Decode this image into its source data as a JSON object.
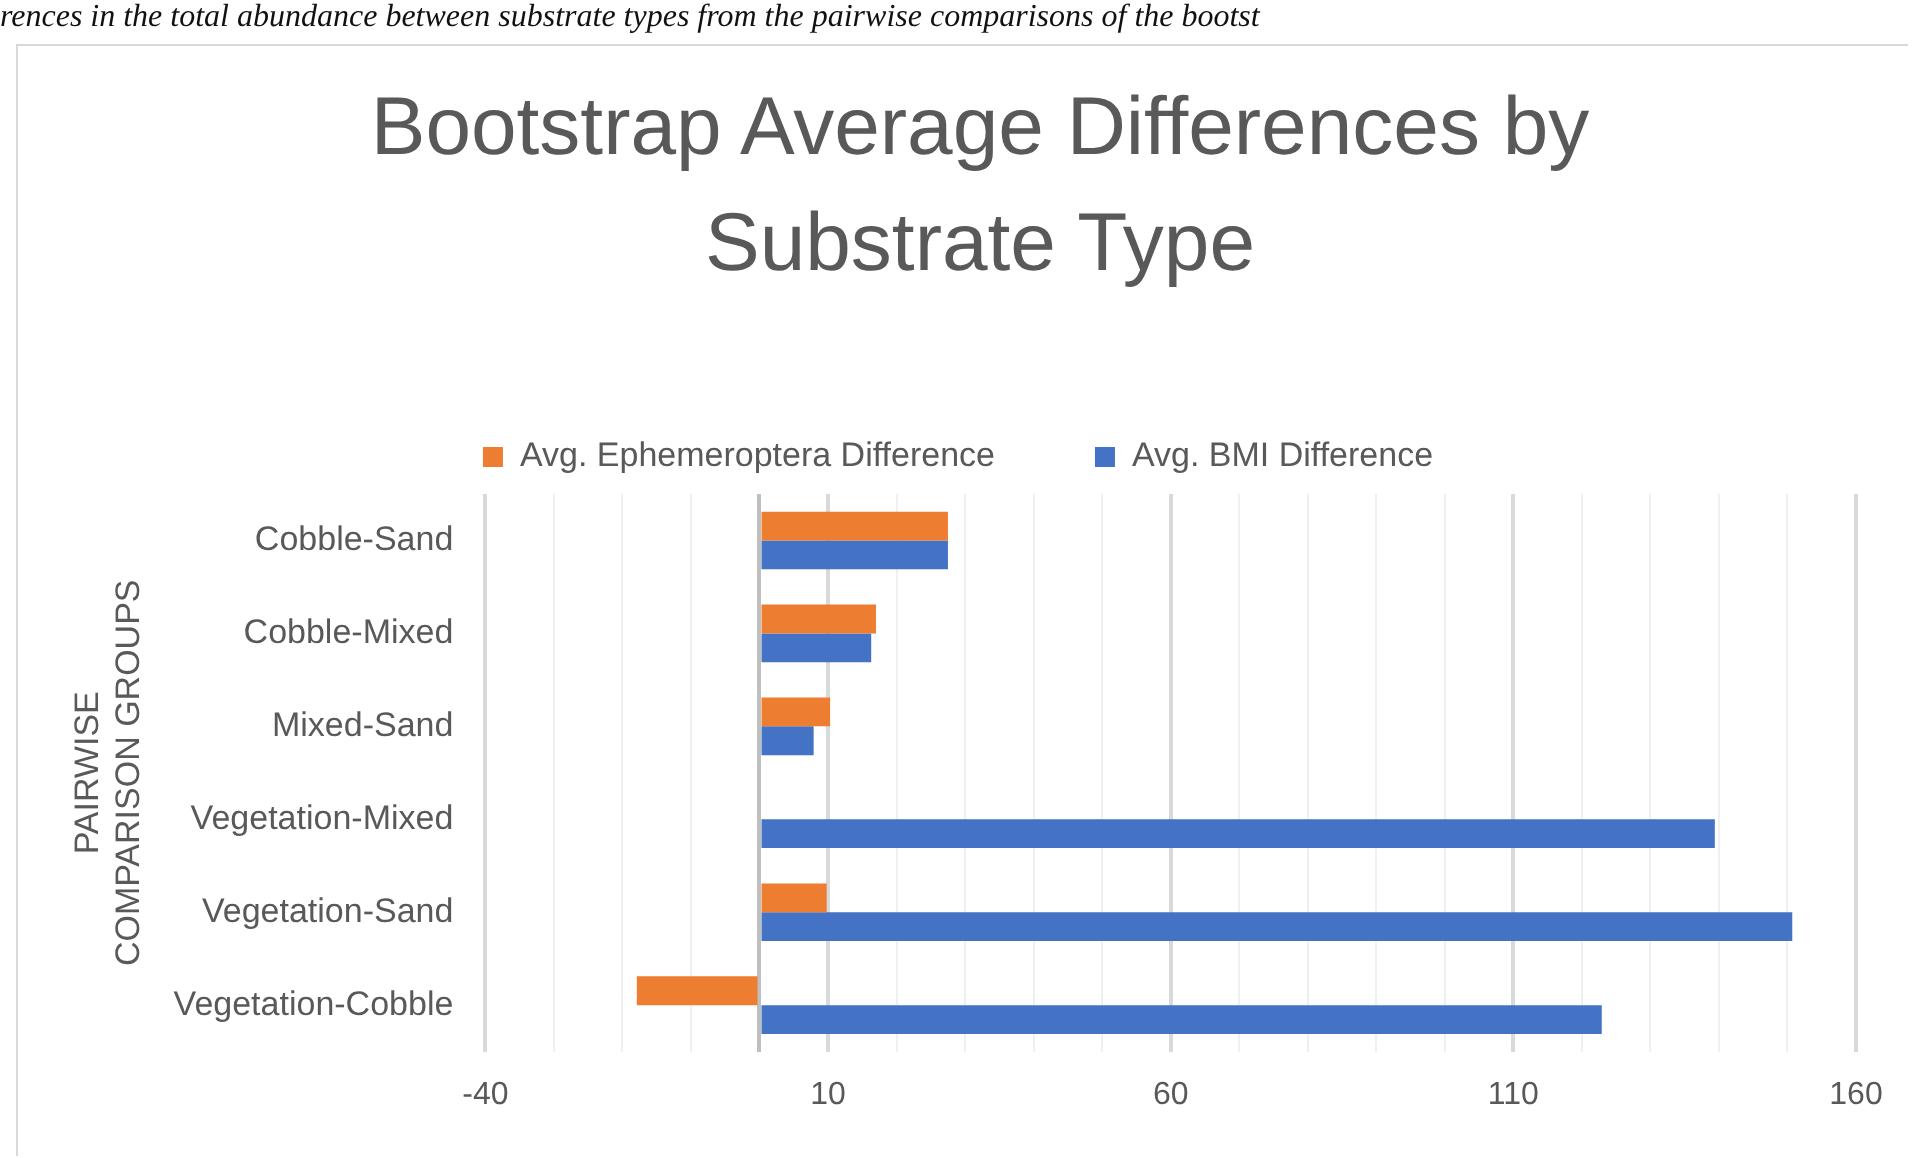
{
  "chart_data": {
    "type": "bar",
    "orientation": "horizontal",
    "title": "Bootstrap Average Differences by Substrate Type",
    "ylabel": "PAIRWISE COMPARISON GROUPS",
    "annotations": [
      "rences in the total abundance between substrate types from the pairwise comparisons of the bootst"
    ],
    "categories": [
      "Cobble-Sand",
      "Cobble-Mixed",
      "Mixed-Sand",
      "Vegetation-Mixed",
      "Vegetation-Sand",
      "Vegetation-Cobble"
    ],
    "series": [
      {
        "name": "Avg. Ephemeroptera Difference",
        "color": "#ed7d31",
        "values": [
          27.5,
          17,
          10.3,
          null,
          9.8,
          -17.9
        ]
      },
      {
        "name": "Avg. BMI Difference",
        "color": "#4472c4",
        "values": [
          27.5,
          16.3,
          7.9,
          139.4,
          150.7,
          122.9
        ]
      }
    ],
    "xlim": [
      -40,
      160
    ],
    "xticks": [
      -40,
      {
        "value": -30,
        "label": null
      },
      {
        "value": -20,
        "label": null
      },
      {
        "value": -10,
        "label": null
      },
      {
        "value": 0,
        "label": null
      },
      10,
      {
        "value": 20,
        "label": null
      },
      {
        "value": 30,
        "label": null
      },
      {
        "value": 40,
        "label": null
      },
      {
        "value": 50,
        "label": null
      },
      60,
      {
        "value": 70,
        "label": null
      },
      {
        "value": 80,
        "label": null
      },
      {
        "value": 90,
        "label": null
      },
      {
        "value": 100,
        "label": null
      },
      110,
      {
        "value": 120,
        "label": null
      },
      {
        "value": 130,
        "label": null
      },
      {
        "value": 140,
        "label": null
      },
      {
        "value": 150,
        "label": null
      },
      160
    ],
    "grid": "x",
    "legend": "top"
  }
}
